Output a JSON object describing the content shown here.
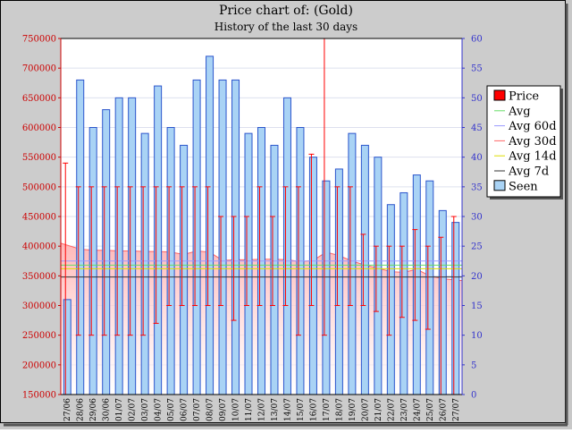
{
  "chart_data": {
    "type": "bar",
    "title": "Price chart of: (Gold)",
    "subtitle": "History of the last 30 days",
    "categories": [
      "27/06",
      "28/06",
      "29/06",
      "30/06",
      "01/07",
      "02/07",
      "03/07",
      "04/07",
      "05/07",
      "06/07",
      "07/07",
      "08/07",
      "09/07",
      "10/07",
      "11/07",
      "12/07",
      "13/07",
      "14/07",
      "15/07",
      "16/07",
      "17/07",
      "18/07",
      "19/07",
      "20/07",
      "21/07",
      "22/07",
      "23/07",
      "24/07",
      "25/07",
      "26/07",
      "27/07"
    ],
    "left_axis": {
      "ylim": [
        150000,
        750000
      ],
      "ticks": [
        "150000",
        "200000",
        "250000",
        "300000",
        "350000",
        "400000",
        "450000",
        "500000",
        "550000",
        "600000",
        "650000",
        "700000",
        "750000"
      ],
      "color": "#cc0000"
    },
    "right_axis": {
      "ylim": [
        0,
        60
      ],
      "ticks": [
        "0",
        "5",
        "10",
        "15",
        "20",
        "25",
        "30",
        "35",
        "40",
        "45",
        "50",
        "55",
        "60"
      ],
      "color": "#3333cc"
    },
    "grid": true,
    "legend_position": "right",
    "series": [
      {
        "name": "Seen",
        "type": "bar",
        "axis": "right",
        "color": "#a9d3f5",
        "edge_color": "#2b55cc",
        "values": [
          16,
          53,
          45,
          48,
          50,
          50,
          44,
          52,
          45,
          42,
          53,
          57,
          53,
          53,
          44,
          45,
          42,
          50,
          45,
          40,
          36,
          38,
          44,
          42,
          40,
          32,
          34,
          37,
          36,
          31,
          29
        ]
      },
      {
        "name": "Price",
        "type": "range",
        "axis": "left",
        "color": "#ff0000",
        "lows": [
          150000,
          250000,
          250000,
          250000,
          250000,
          250000,
          250000,
          270000,
          300000,
          300000,
          300000,
          300000,
          300000,
          275000,
          300000,
          300000,
          300000,
          300000,
          250000,
          300000,
          250000,
          300000,
          300000,
          300000,
          290000,
          250000,
          280000,
          275000,
          260000,
          150000,
          150000
        ],
        "highs": [
          540000,
          500000,
          500000,
          500000,
          500000,
          500000,
          500000,
          500000,
          500000,
          500000,
          500000,
          500000,
          450000,
          450000,
          450000,
          500000,
          450000,
          500000,
          500000,
          555000,
          750000,
          500000,
          500000,
          420000,
          400000,
          400000,
          400000,
          428000,
          400000,
          415000,
          450000
        ]
      },
      {
        "name": "Avg 30d",
        "type": "area",
        "axis": "left",
        "color": "#ff6666",
        "values": [
          405000,
          395000,
          393000,
          393000,
          392000,
          392000,
          391000,
          391000,
          390000,
          386000,
          392000,
          390000,
          376000,
          377000,
          377000,
          378000,
          378000,
          377000,
          374000,
          376000,
          390000,
          384000,
          375000,
          368000,
          363000,
          357000,
          356000,
          361000,
          350000,
          345000,
          342000
        ]
      },
      {
        "name": "Avg 60d",
        "type": "line",
        "axis": "left",
        "color": "#9999ff",
        "values": [
          375000,
          375000,
          375000,
          375000,
          375000,
          375000,
          375000,
          375000,
          375000,
          375000,
          375000,
          375000,
          375000,
          375000,
          375000,
          375000,
          375000,
          375000,
          375000,
          375000,
          375000,
          375000,
          375000,
          375000,
          375000,
          375000,
          375000,
          375000,
          375000,
          375000,
          375000
        ]
      },
      {
        "name": "Avg",
        "type": "line",
        "axis": "left",
        "color": "#66dd66",
        "values": [
          368000,
          368000,
          368000,
          368000,
          368000,
          368000,
          368000,
          368000,
          368000,
          368000,
          368000,
          368000,
          368000,
          368000,
          368000,
          368000,
          368000,
          368000,
          368000,
          368000,
          368000,
          368000,
          368000,
          368000,
          368000,
          368000,
          368000,
          368000,
          368000,
          368000,
          368000
        ]
      },
      {
        "name": "Avg 14d",
        "type": "line",
        "axis": "left",
        "color": "#dddd00",
        "values": [
          362000,
          362000,
          362000,
          362000,
          362000,
          362000,
          362000,
          362000,
          362000,
          362000,
          362000,
          362000,
          362000,
          362000,
          362000,
          362000,
          362000,
          362000,
          362000,
          362000,
          362000,
          362000,
          362000,
          362000,
          362000,
          362000,
          362000,
          362000,
          362000,
          362000,
          362000
        ]
      },
      {
        "name": "Avg 7d",
        "type": "line",
        "axis": "left",
        "color": "#333333",
        "values": [
          348000,
          348000,
          348000,
          348000,
          348000,
          348000,
          348000,
          348000,
          348000,
          348000,
          348000,
          348000,
          348000,
          348000,
          348000,
          348000,
          348000,
          348000,
          348000,
          348000,
          348000,
          348000,
          348000,
          348000,
          348000,
          348000,
          348000,
          348000,
          348000,
          348000,
          348000
        ]
      }
    ],
    "legend": [
      "Price",
      "Avg",
      "Avg 60d",
      "Avg 30d",
      "Avg 14d",
      "Avg 7d",
      "Seen"
    ],
    "legend_colors": {
      "Price": "#ff0000",
      "Avg": "#66dd66",
      "Avg 60d": "#9999ff",
      "Avg 30d": "#ff6666",
      "Avg 14d": "#dddd00",
      "Avg 7d": "#333333",
      "Seen": "#a9d3f5"
    }
  }
}
